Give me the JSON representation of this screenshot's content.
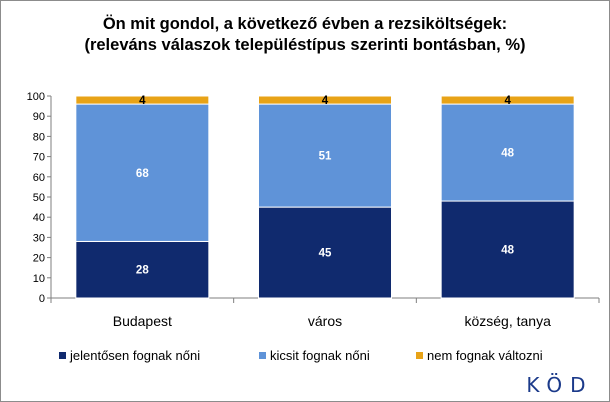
{
  "title": {
    "line1": "Ön mit gondol, a következő évben a rezsiköltségek:",
    "line2": "(releváns válaszok településtípus szerinti bontásban, %)"
  },
  "logo": {
    "text": "KÖD"
  },
  "chart_data": {
    "type": "bar",
    "stacked": true,
    "categories": [
      "Budapest",
      "város",
      "község, tanya"
    ],
    "series": [
      {
        "name": "jelentősen fognak nőni",
        "values": [
          28,
          45,
          48
        ],
        "color": "#102a6e",
        "label_color": "#ffffff"
      },
      {
        "name": "kicsit fognak nőni",
        "values": [
          68,
          51,
          48
        ],
        "color": "#5f93d8",
        "label_color": "#ffffff"
      },
      {
        "name": "nem fognak változni",
        "values": [
          4,
          4,
          4
        ],
        "color": "#e8a317",
        "label_color": "#000000"
      }
    ],
    "ylim": [
      0,
      100
    ],
    "yticks": [
      0,
      10,
      20,
      30,
      40,
      50,
      60,
      70,
      80,
      90,
      100
    ],
    "grid": false,
    "legend_position": "bottom"
  }
}
